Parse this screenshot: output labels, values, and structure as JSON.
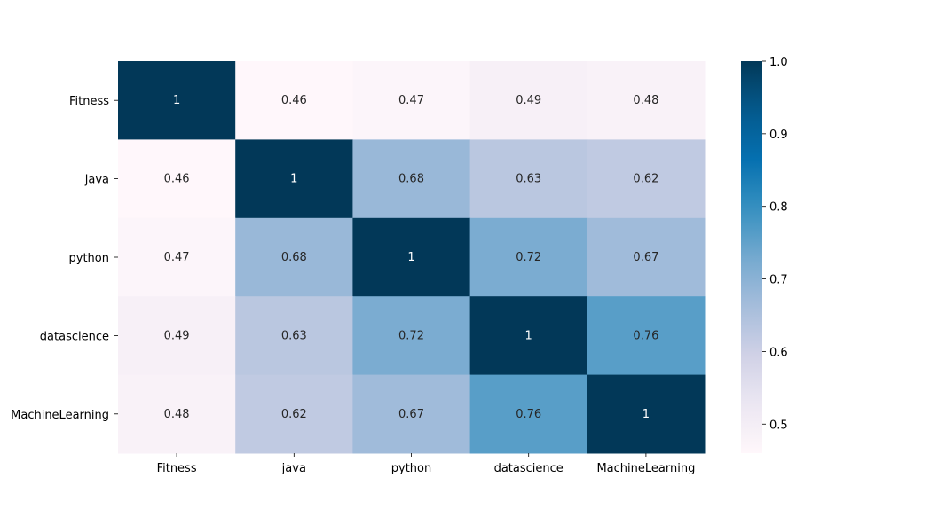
{
  "chart_data": {
    "type": "heatmap",
    "title": "",
    "xlabel": "",
    "ylabel": "",
    "x_categories": [
      "Fitness",
      "java",
      "python",
      "datascience",
      "MachineLearning"
    ],
    "y_categories": [
      "Fitness",
      "java",
      "python",
      "datascience",
      "MachineLearning"
    ],
    "values": [
      [
        1,
        0.46,
        0.47,
        0.49,
        0.48
      ],
      [
        0.46,
        1,
        0.68,
        0.63,
        0.62
      ],
      [
        0.47,
        0.68,
        1,
        0.72,
        0.67
      ],
      [
        0.49,
        0.63,
        0.72,
        1,
        0.76
      ],
      [
        0.48,
        0.62,
        0.67,
        0.76,
        1
      ]
    ],
    "annotations": true,
    "colormap": "PuBu",
    "colorbar": {
      "vmin": 0.46,
      "vmax": 1.0,
      "ticks": [
        0.5,
        0.6,
        0.7,
        0.8,
        0.9,
        1.0
      ],
      "tick_labels": [
        "0.5",
        "0.6",
        "0.7",
        "0.8",
        "0.9",
        "1.0"
      ]
    }
  }
}
